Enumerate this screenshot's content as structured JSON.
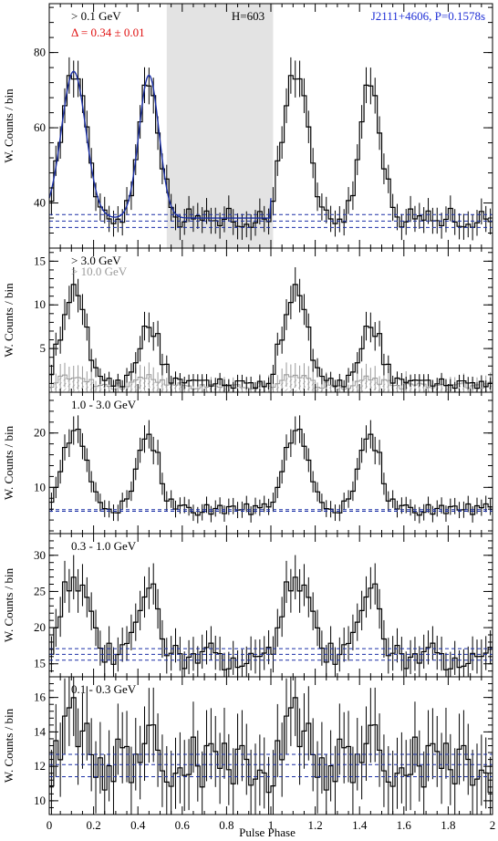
{
  "figure": {
    "source_name": "J2111+4606, P=0.1578s",
    "h_test": "H=603",
    "xlabel": "Pulse Phase",
    "ylabel": "W. Counts / bin",
    "colors": {
      "histogram": "#000000",
      "fit": "#1a2fa6",
      "background_lines": "#1a2fa6",
      "source_text": "#1f2fd6",
      "delta_text": "#e01010",
      "off_pulse_shade": "#e3e3e3",
      "high_energy": "#9a9a9a"
    }
  },
  "chart_data": [
    {
      "type": "line",
      "energy_label": "> 0.1 GeV",
      "delta_label": "Δ = 0.34 ± 0.01",
      "xlim": [
        0,
        2
      ],
      "ylim": [
        28,
        93
      ],
      "yticks": [
        40,
        60,
        80
      ],
      "off_pulse_region": [
        0.53,
        1.01
      ],
      "background_levels": [
        33.5,
        35.2,
        36.9
      ],
      "peaks": [
        {
          "phase": 0.11,
          "counts": 75
        },
        {
          "phase": 0.45,
          "counts": 74
        }
      ],
      "baseline_counts": 36,
      "fit_peak_counts": 75,
      "points_per_phase_cycle": 50
    },
    {
      "type": "line",
      "energy_label": "> 3.0 GeV",
      "secondary_label": "> 10.0 GeV",
      "xlim": [
        0,
        2
      ],
      "ylim": [
        0,
        16.5
      ],
      "yticks": [
        5,
        10,
        15
      ],
      "background_levels": [],
      "peaks": [
        {
          "phase": 0.11,
          "counts": 11
        },
        {
          "phase": 0.45,
          "counts": 8
        }
      ],
      "baseline_counts": 1.0,
      "secondary_counts": 0.8,
      "points_per_phase_cycle": 50
    },
    {
      "type": "line",
      "energy_label": "1.0 - 3.0 GeV",
      "xlim": [
        0,
        2
      ],
      "ylim": [
        1.5,
        27.5
      ],
      "yticks": [
        10,
        20
      ],
      "background_levels": [
        5.6,
        5.9
      ],
      "peaks": [
        {
          "phase": 0.11,
          "counts": 20
        },
        {
          "phase": 0.45,
          "counts": 20
        }
      ],
      "baseline_counts": 6,
      "points_per_phase_cycle": 50
    },
    {
      "type": "line",
      "energy_label": "0.3 - 1.0 GeV",
      "xlim": [
        0,
        2
      ],
      "ylim": [
        13.2,
        33
      ],
      "yticks": [
        15,
        20,
        25,
        30
      ],
      "background_levels": [
        15.5,
        16.3,
        17.1
      ],
      "peaks": [
        {
          "phase": 0.11,
          "counts": 28
        },
        {
          "phase": 0.45,
          "counts": 25
        }
      ],
      "baseline_counts": 16,
      "points_per_phase_cycle": 50
    },
    {
      "type": "line",
      "energy_label": "0.1 - 0.3 GeV",
      "xlim": [
        0,
        2
      ],
      "ylim": [
        9.2,
        17.2
      ],
      "yticks": [
        10,
        12,
        14,
        16
      ],
      "background_levels": [
        11.4,
        12.1,
        12.7
      ],
      "peaks": [
        {
          "phase": 0.11,
          "counts": 14.3
        },
        {
          "phase": 0.45,
          "counts": 13.5
        }
      ],
      "baseline_counts": 12.1,
      "points_per_phase_cycle": 50
    }
  ],
  "xaxis": {
    "ticks": [
      0,
      0.2,
      0.4,
      0.6,
      0.8,
      1,
      1.2,
      1.4,
      1.6,
      1.8,
      2
    ],
    "tick_labels": [
      "0",
      "0.2",
      "0.4",
      "0.6",
      "0.8",
      "1",
      "1.2",
      "1.4",
      "1.6",
      "1.8",
      "2"
    ]
  }
}
